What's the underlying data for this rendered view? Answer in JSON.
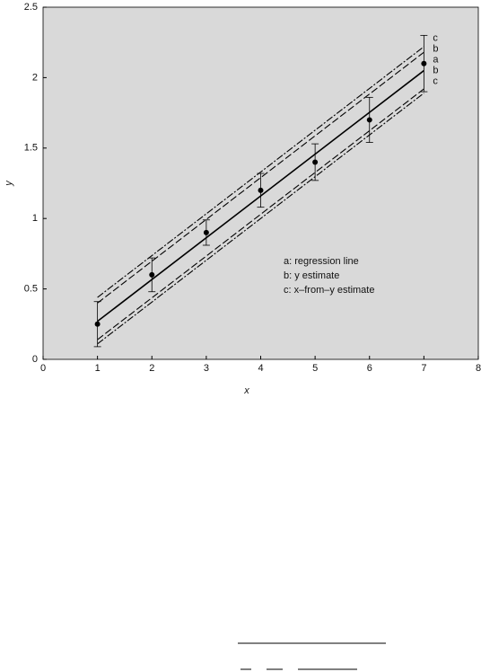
{
  "chart_data": {
    "type": "scatter",
    "xlabel": "x",
    "ylabel": "y",
    "xlim": [
      0,
      8
    ],
    "ylim": [
      0,
      2.5
    ],
    "xticks": [
      0,
      1,
      2,
      3,
      4,
      5,
      6,
      7,
      8
    ],
    "yticks": [
      0,
      0.5,
      1,
      1.5,
      2,
      2.5
    ],
    "background": "#d9d9d9",
    "color": "#000000",
    "x": [
      1,
      2,
      3,
      4,
      5,
      6,
      7
    ],
    "values": [
      0.25,
      0.6,
      0.9,
      1.2,
      1.4,
      1.7,
      2.1
    ],
    "errors": [
      0.16,
      0.12,
      0.09,
      0.12,
      0.13,
      0.16,
      0.2
    ],
    "lines": [
      {
        "label": "c",
        "style": "dashdot",
        "x": [
          1,
          7
        ],
        "values": [
          0.44,
          2.22
        ]
      },
      {
        "label": "b",
        "style": "dashed",
        "x": [
          1,
          7
        ],
        "values": [
          0.4,
          2.18
        ]
      },
      {
        "label": "a",
        "style": "solid",
        "x": [
          1,
          7
        ],
        "values": [
          0.27,
          2.05
        ]
      },
      {
        "label": "b",
        "style": "dashed",
        "x": [
          1,
          7
        ],
        "values": [
          0.14,
          1.92
        ]
      },
      {
        "label": "c",
        "style": "dashdot",
        "x": [
          1,
          7
        ],
        "values": [
          0.11,
          1.89
        ]
      }
    ],
    "legend": [
      "a: regression line",
      "b: y estimate",
      "c: x–from–y estimate"
    ]
  }
}
